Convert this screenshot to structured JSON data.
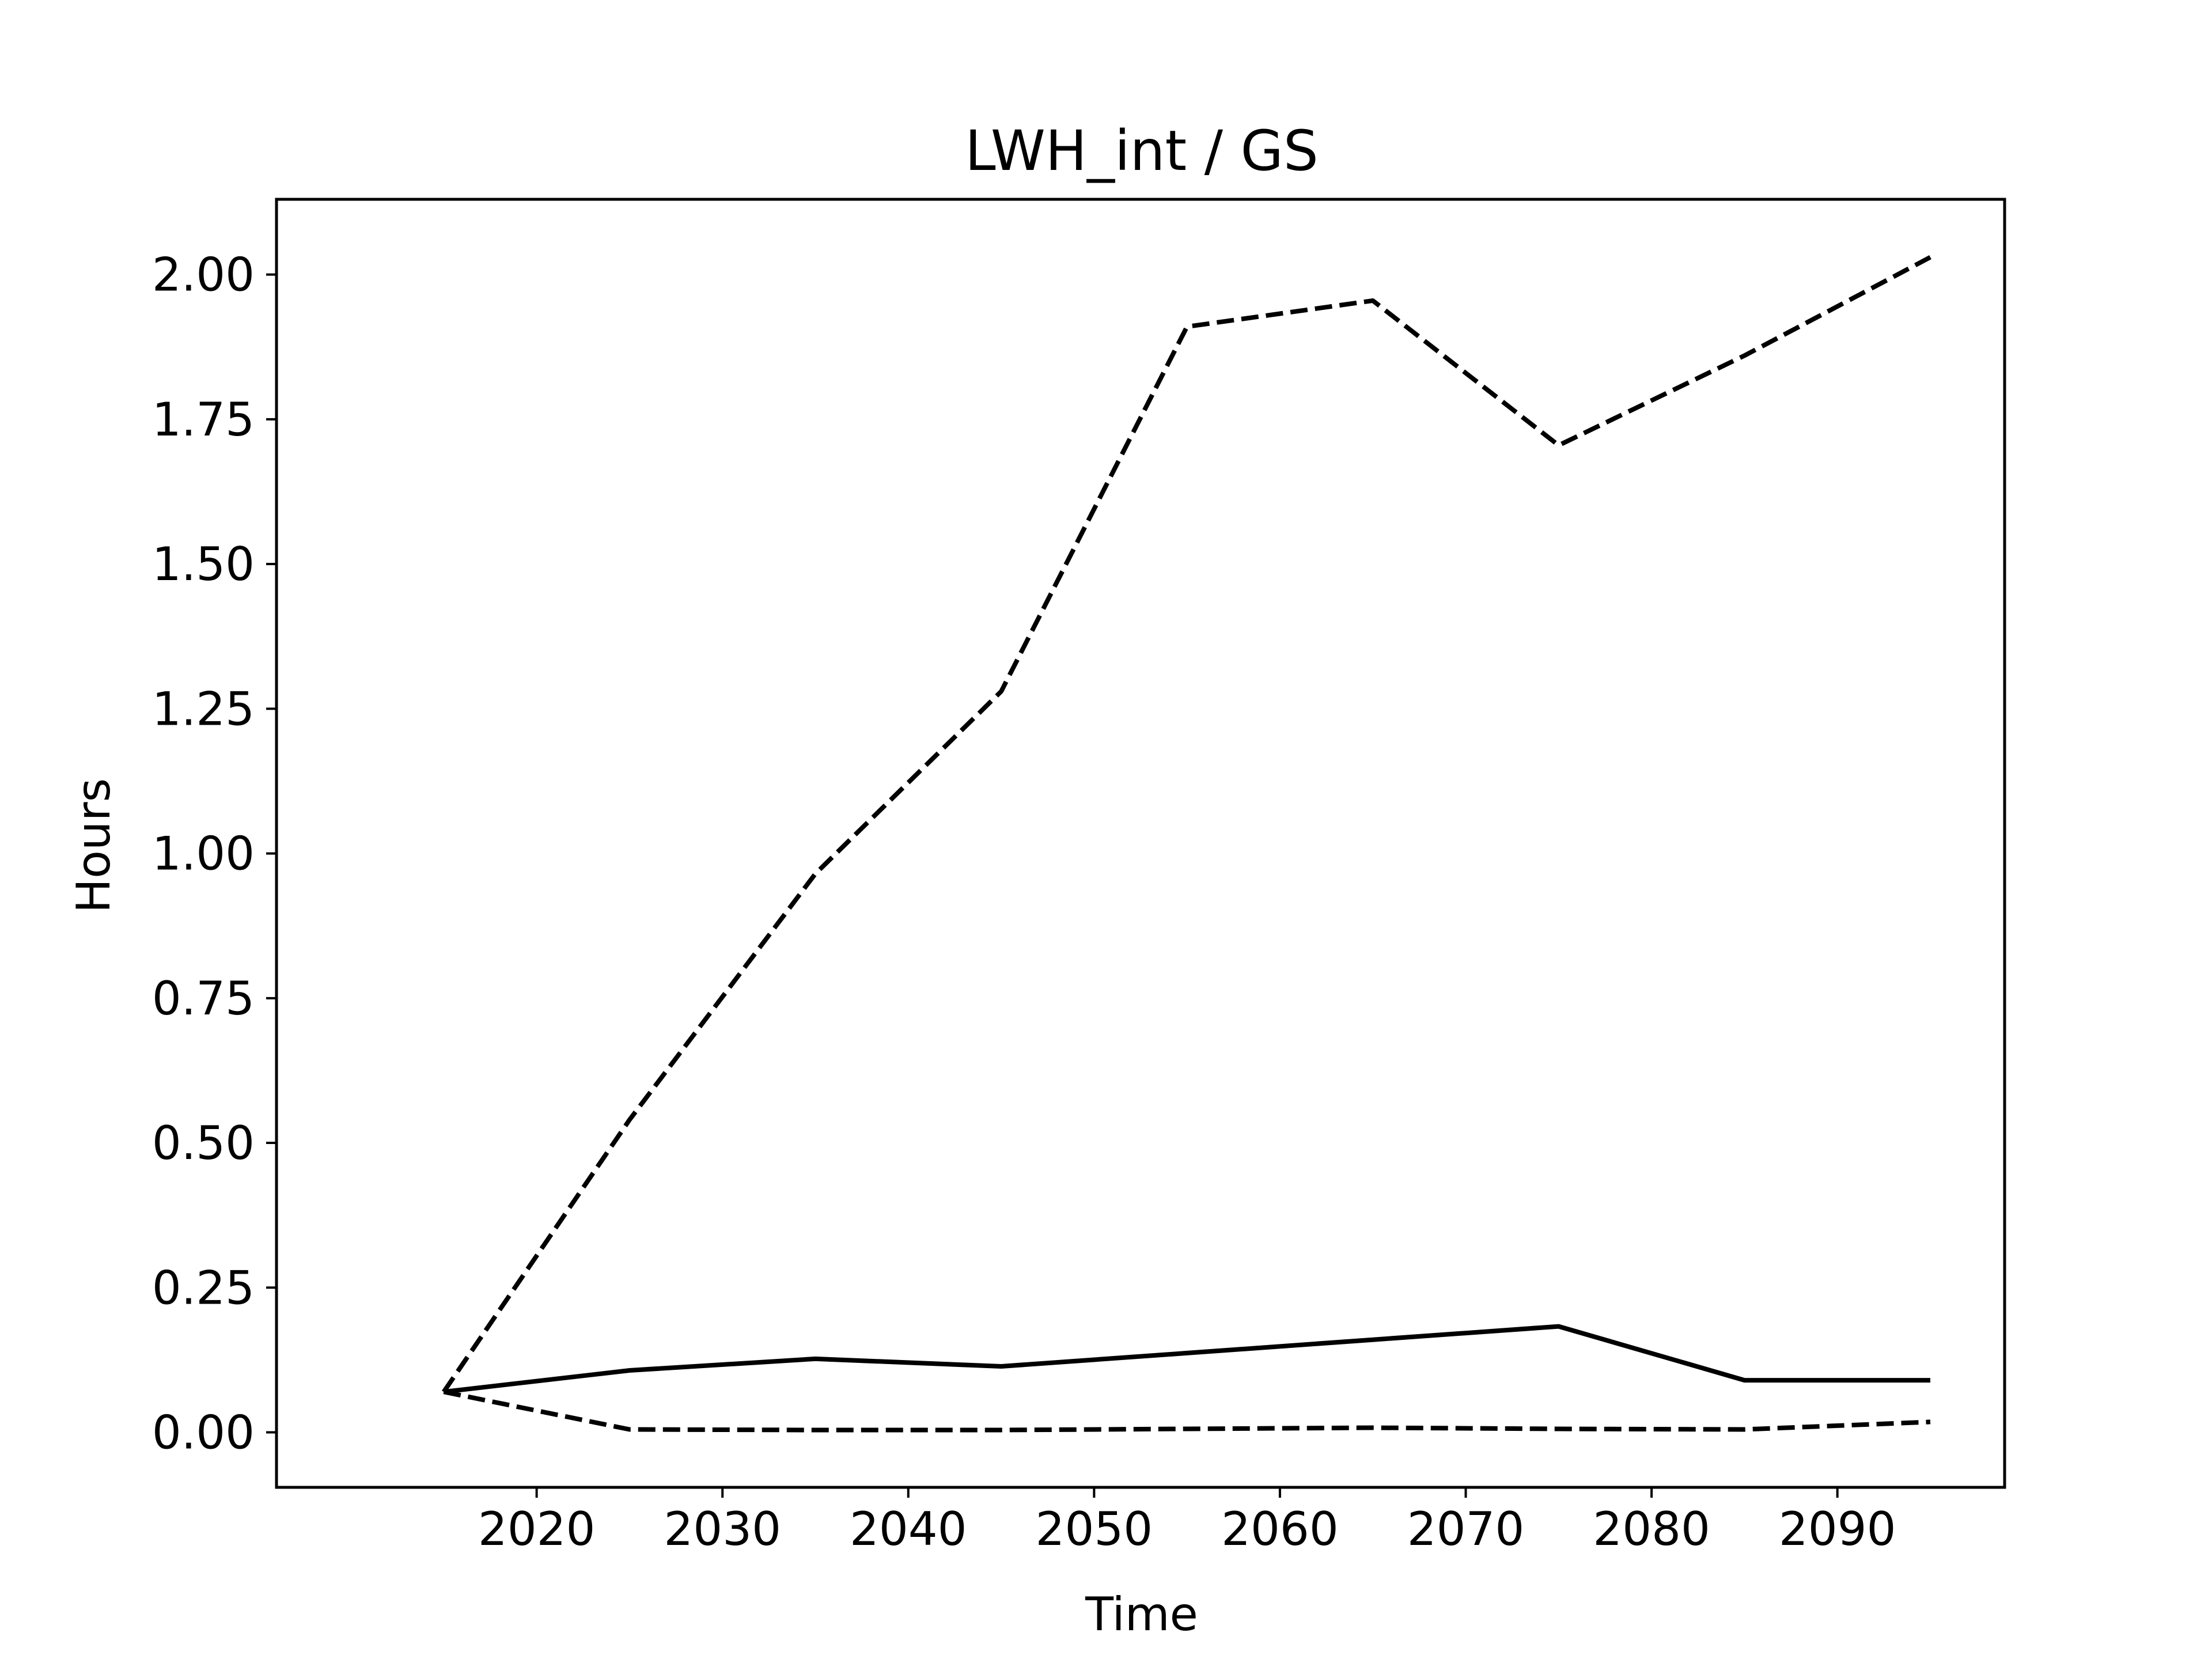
{
  "chart_data": {
    "type": "line",
    "title": "LWH_int / GS",
    "xlabel": "Time",
    "ylabel": "Hours",
    "x": [
      2015,
      2025,
      2035,
      2045,
      2055,
      2065,
      2075,
      2085,
      2095
    ],
    "xlim": [
      2006,
      2099
    ],
    "ylim": [
      -0.095,
      2.13
    ],
    "xticks": [
      2020,
      2030,
      2040,
      2050,
      2060,
      2070,
      2080,
      2090
    ],
    "yticks": [
      0.0,
      0.25,
      0.5,
      0.75,
      1.0,
      1.25,
      1.5,
      1.75,
      2.0
    ],
    "ytick_labels": [
      "0.00",
      "0.25",
      "0.50",
      "0.75",
      "1.00",
      "1.25",
      "1.50",
      "1.75",
      "2.00"
    ],
    "grid": false,
    "legend": false,
    "series": [
      {
        "style": "solid",
        "color": "#000000",
        "values": [
          0.07,
          0.107,
          0.127,
          0.114,
          0.137,
          0.16,
          0.183,
          0.09,
          0.09
        ]
      },
      {
        "style": "dashed",
        "color": "#000000",
        "values": [
          0.07,
          0.54,
          0.965,
          1.28,
          1.91,
          1.955,
          1.705,
          1.86,
          2.03
        ]
      },
      {
        "style": "dashed",
        "color": "#000000",
        "values": [
          0.07,
          0.005,
          0.004,
          0.004,
          0.006,
          0.008,
          0.006,
          0.005,
          0.018
        ]
      }
    ]
  }
}
